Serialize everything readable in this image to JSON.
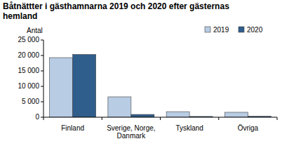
{
  "chart_data": {
    "type": "bar",
    "title": "Båtnättter i gästhamnarna 2019 och 2020 efter gästernas hemland",
    "y_label": "Antal",
    "categories": [
      "Finland",
      "Sverige, Norge, Danmark",
      "Tyskland",
      "Övriga"
    ],
    "series": [
      {
        "name": "2019",
        "color": "#b8cce4",
        "values": [
          19300,
          6600,
          1800,
          1600
        ]
      },
      {
        "name": "2020",
        "color": "#2f5d8c",
        "values": [
          20300,
          900,
          250,
          300
        ]
      }
    ],
    "ylim": [
      0,
      25000
    ],
    "yticks": [
      0,
      {
        "value": 5000,
        "label": "5 000"
      },
      {
        "value": 10000,
        "label": "10 000"
      },
      {
        "value": 15000,
        "label": "15 000"
      },
      {
        "value": 20000,
        "label": "20 000"
      },
      {
        "value": 25000,
        "label": "25 000"
      }
    ],
    "grid": false,
    "legend": "upper right"
  }
}
